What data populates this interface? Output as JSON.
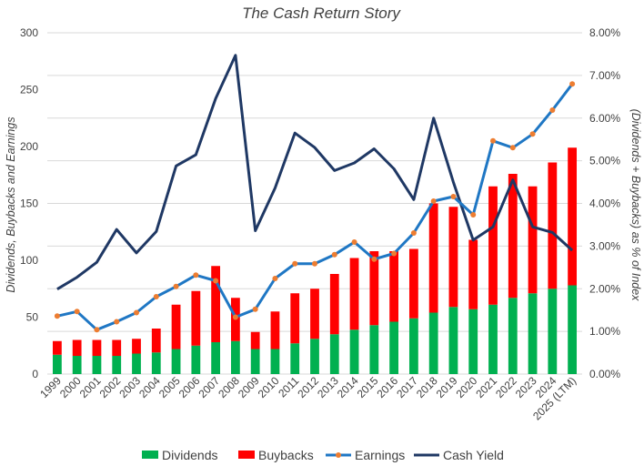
{
  "chart_data": {
    "type": "combo",
    "title": "The Cash Return Story",
    "ylabel_left": "Dividends, Buybacks and Earnings",
    "ylabel_right": "(Dividends + Buybacks) as % of Index",
    "ylim_left": [
      0,
      300
    ],
    "ylim_right": [
      0.0,
      0.08
    ],
    "yticks_left": [
      "0",
      "50",
      "100",
      "150",
      "200",
      "250",
      "300"
    ],
    "yticks_right": [
      "0.00%",
      "1.00%",
      "2.00%",
      "3.00%",
      "4.00%",
      "5.00%",
      "6.00%",
      "7.00%",
      "8.00%"
    ],
    "categories": [
      "1999",
      "2000",
      "2001",
      "2002",
      "2003",
      "2004",
      "2005",
      "2006",
      "2007",
      "2008",
      "2009",
      "2010",
      "2011",
      "2012",
      "2013",
      "2014",
      "2015",
      "2016",
      "2017",
      "2018",
      "2019",
      "2020",
      "2021",
      "2022",
      "2023",
      "2024",
      "2025 (LTM)"
    ],
    "series": [
      {
        "name": "Dividends",
        "kind": "stacked-bar",
        "axis": "left",
        "color": "#00b050",
        "values": [
          17,
          16,
          16,
          16,
          18,
          19,
          22,
          25,
          28,
          29,
          22,
          22,
          27,
          31,
          35,
          39,
          43,
          46,
          49,
          54,
          59,
          57,
          61,
          67,
          71,
          75,
          78
        ]
      },
      {
        "name": "Buybacks",
        "kind": "stacked-bar",
        "axis": "left",
        "color": "#ff0000",
        "values": [
          12,
          14,
          14,
          14,
          13,
          21,
          39,
          48,
          67,
          38,
          15,
          33,
          44,
          44,
          53,
          63,
          65,
          62,
          61,
          96,
          88,
          61,
          104,
          109,
          94,
          111,
          121
        ]
      },
      {
        "name": "Earnings",
        "kind": "line-markers",
        "axis": "left",
        "color": "#1f77c4",
        "marker_color": "#ed7d31",
        "values": [
          51,
          55,
          39,
          46,
          54,
          68,
          77,
          87,
          82,
          50,
          57,
          84,
          97,
          97,
          105,
          116,
          101,
          106,
          124,
          152,
          156,
          140,
          205,
          199,
          211,
          232,
          255
        ]
      },
      {
        "name": "Cash Yield",
        "kind": "line",
        "axis": "right",
        "color": "#1f3864",
        "values": [
          0.0199,
          0.0227,
          0.0262,
          0.0339,
          0.0284,
          0.0334,
          0.0488,
          0.0514,
          0.0646,
          0.0747,
          0.0336,
          0.0436,
          0.0565,
          0.0531,
          0.0477,
          0.0495,
          0.0528,
          0.0481,
          0.0409,
          0.06,
          0.045,
          0.0314,
          0.0345,
          0.0455,
          0.0345,
          0.0332,
          0.029
        ]
      }
    ],
    "legend": {
      "position": "bottom",
      "items": [
        "Dividends",
        "Buybacks",
        "Earnings",
        "Cash Yield"
      ]
    }
  }
}
